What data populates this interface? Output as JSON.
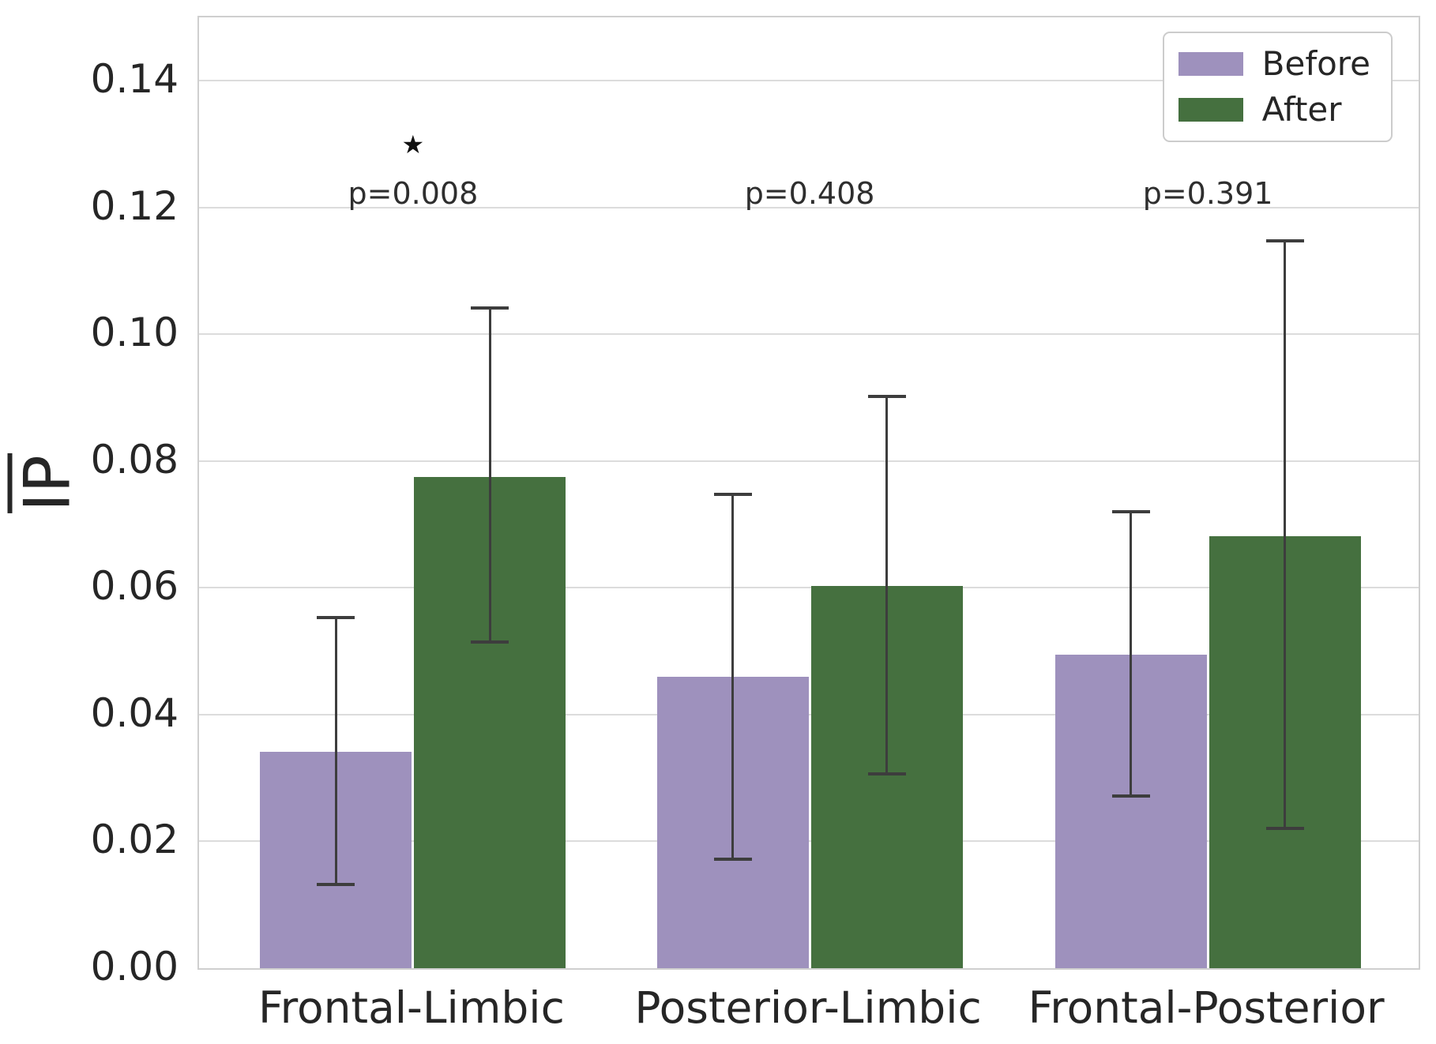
{
  "chart_data": {
    "type": "bar",
    "title": "",
    "ylabel": {
      "text": "IP",
      "overline": true
    },
    "xlabel": "",
    "ylim": [
      0,
      0.15
    ],
    "grid": "horizontal-only",
    "legend_position": "upper right",
    "yticks": [
      "0.00",
      "0.02",
      "0.04",
      "0.06",
      "0.08",
      "0.10",
      "0.12",
      "0.14"
    ],
    "ytick_values": [
      0.0,
      0.02,
      0.04,
      0.06,
      0.08,
      0.1,
      0.12,
      0.14
    ],
    "categories": [
      "Frontal-Limbic",
      "Posterior-Limbic",
      "Frontal-Posterior"
    ],
    "series": [
      {
        "name": "Before",
        "color": "#9e91bd",
        "values": [
          0.0341,
          0.046,
          0.0494
        ],
        "error_low": [
          0.0132,
          0.0172,
          0.0271
        ],
        "error_high": [
          0.0553,
          0.0748,
          0.072
        ]
      },
      {
        "name": "After",
        "color": "#45703f",
        "values": [
          0.0775,
          0.0603,
          0.0681
        ],
        "error_low": [
          0.0514,
          0.0306,
          0.022
        ],
        "error_high": [
          0.1041,
          0.0902,
          0.1147
        ]
      }
    ],
    "annotations": [
      {
        "p_label": "p=0.008",
        "star": "★",
        "significant": true
      },
      {
        "p_label": "p=0.408",
        "significant": false
      },
      {
        "p_label": "p=0.391",
        "significant": false
      }
    ],
    "style_colors": {
      "errorbar": "#3d3d3d",
      "gridline": "#dcdcdc",
      "spine": "#cfcfcf",
      "text": "#262626"
    }
  }
}
